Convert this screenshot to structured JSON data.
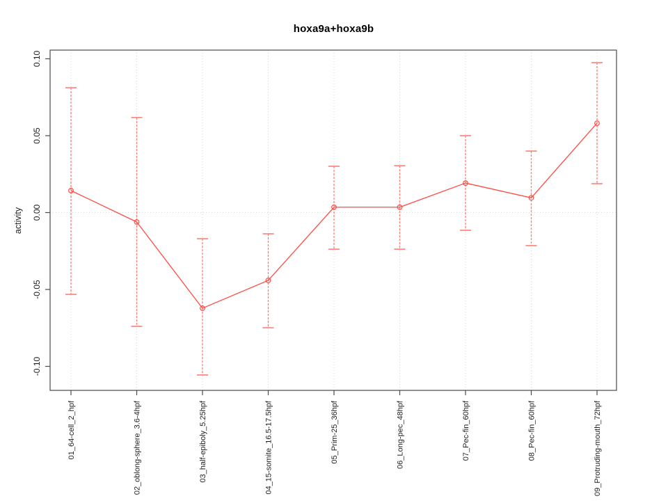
{
  "chart_data": {
    "type": "line",
    "title": "hoxa9a+hoxa9b",
    "xlabel": "",
    "ylabel": "activity",
    "categories": [
      "01_64-cell_2_hpf",
      "02_oblong-sphere_3.6-4hpf",
      "03_half-epiboly_5.25hpf",
      "04_15-somite_16.5-17.5hpf",
      "05_Prim-25_36hpf",
      "06_Long-pec_48hpf",
      "07_Pec-fin_60hpf",
      "08_Pec-fin_60hpf",
      "09_Protruding-mouth_72hpf"
    ],
    "series": [
      {
        "name": "activity",
        "values": [
          0.0143,
          -0.0061,
          -0.0622,
          -0.0441,
          0.0035,
          0.0035,
          0.0192,
          0.0096,
          0.0581
        ],
        "upper": [
          0.0812,
          0.0618,
          -0.017,
          -0.0138,
          0.0301,
          0.0305,
          0.05,
          0.04,
          0.0975
        ],
        "lower": [
          -0.0532,
          -0.074,
          -0.1056,
          -0.0749,
          -0.0238,
          -0.0238,
          -0.0115,
          -0.0215,
          0.0188
        ]
      }
    ],
    "ylim": [
      -0.107,
      0.103
    ],
    "yticks": [
      0.1,
      0.05,
      0.0,
      -0.05,
      -0.1
    ],
    "ytick_labels": [
      "0.10",
      "0.05",
      "0.00",
      "-0.05",
      "-0.10"
    ],
    "grid": {
      "horizontal_at": [
        0
      ],
      "vertical_at": "each_category",
      "style": "dotted"
    },
    "legend": null,
    "marker": "open-circle",
    "colors": {
      "line": "#ff4a42",
      "marker": "#ff4a42",
      "error_bar": "#ff7d75",
      "grid": "#d4d4d4",
      "box": "#4a4a4a",
      "tick_text": "#1f1f1f",
      "background": "#ffffff"
    }
  }
}
